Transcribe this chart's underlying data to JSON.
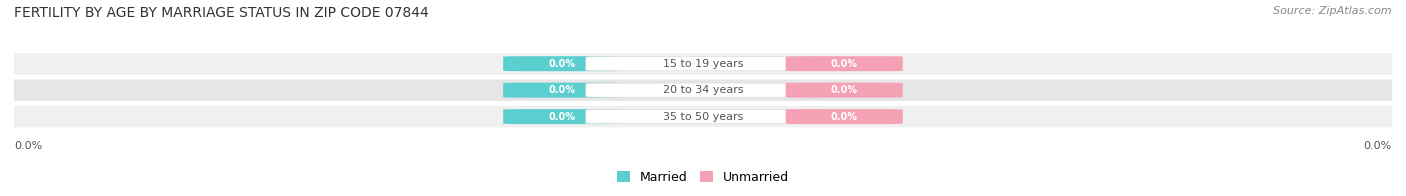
{
  "title": "FERTILITY BY AGE BY MARRIAGE STATUS IN ZIP CODE 07844",
  "source": "Source: ZipAtlas.com",
  "categories": [
    "15 to 19 years",
    "20 to 34 years",
    "35 to 50 years"
  ],
  "married_values": [
    0.0,
    0.0,
    0.0
  ],
  "unmarried_values": [
    0.0,
    0.0,
    0.0
  ],
  "married_color": "#5bcfcf",
  "unmarried_color": "#f4a0b5",
  "row_bg_color": "#f0f0f0",
  "row_alt_bg_color": "#e6e6e6",
  "category_label_color": "#555555",
  "background_color": "#ffffff",
  "title_fontsize": 10,
  "source_fontsize": 8,
  "axis_label_fontsize": 8
}
